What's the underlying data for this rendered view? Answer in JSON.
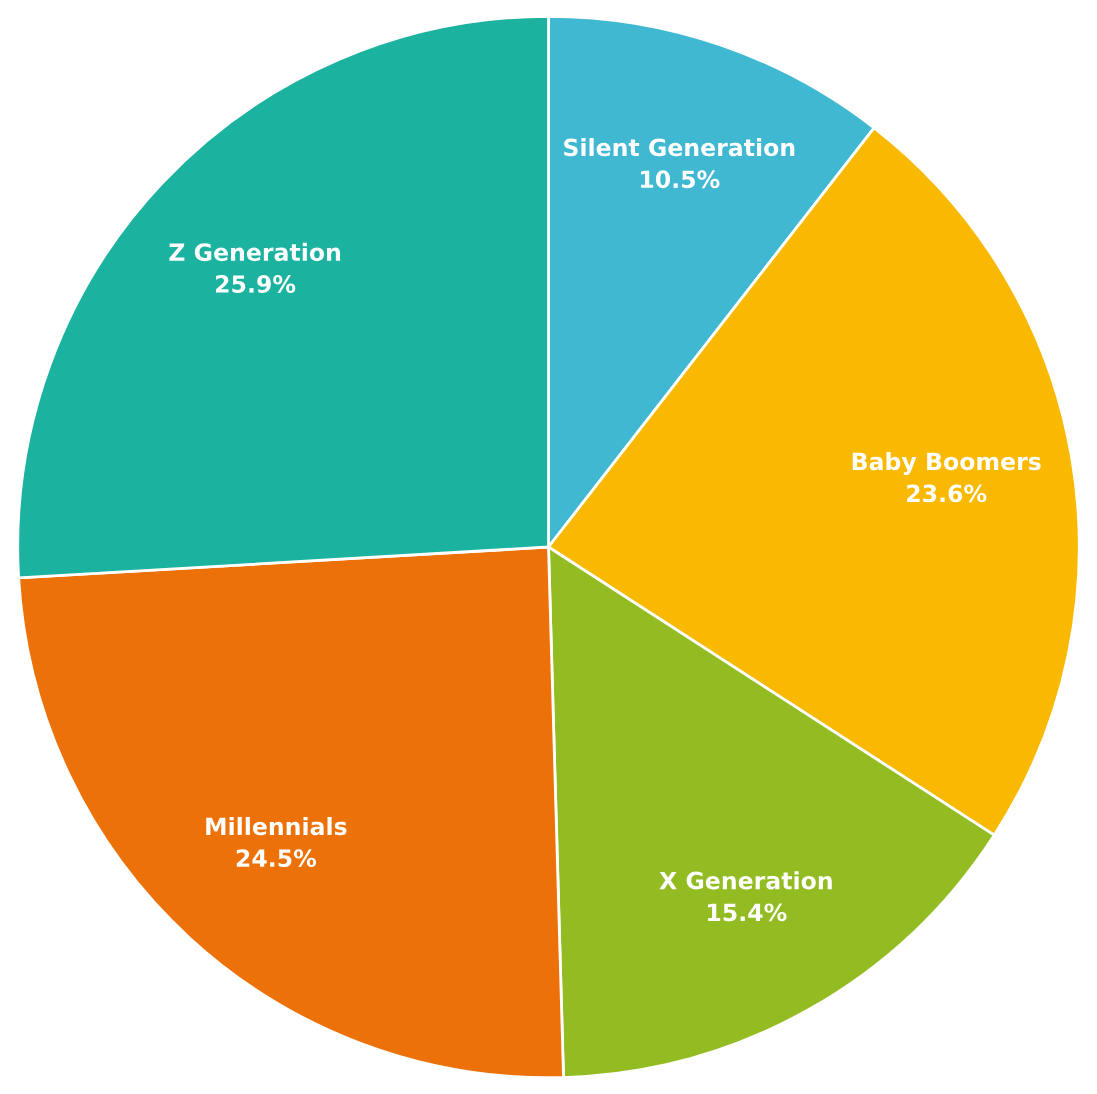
{
  "chart_data": {
    "type": "pie",
    "categories": [
      "Silent Generation",
      "Baby Boomers",
      "X Generation",
      "Millennials",
      "Z Generation"
    ],
    "values": [
      10.5,
      23.6,
      15.4,
      24.5,
      25.9
    ],
    "value_labels": [
      "10.5%",
      "23.6%",
      "15.4%",
      "24.5%",
      "25.9%"
    ],
    "colors": [
      "#41b8d2",
      "#f9b900",
      "#93bc23",
      "#ec7108",
      "#1cb2a0"
    ],
    "legend": false
  }
}
